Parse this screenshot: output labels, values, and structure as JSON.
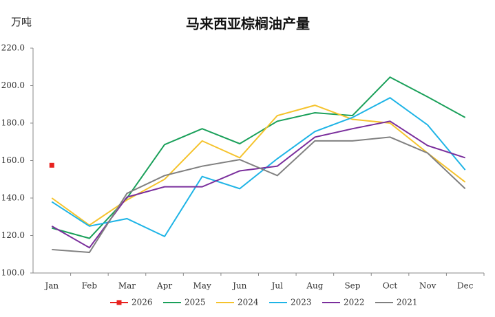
{
  "chart_data": {
    "type": "line",
    "title": "马来西亚棕榈油产量",
    "y_label": "万吨",
    "categories": [
      "Jan",
      "Feb",
      "Mar",
      "Apr",
      "May",
      "Jun",
      "Jul",
      "Aug",
      "Sep",
      "Oct",
      "Nov",
      "Dec"
    ],
    "ylim": [
      100,
      220
    ],
    "yticks": [
      {
        "value": 100,
        "label": "100.0"
      },
      {
        "value": 120,
        "label": "120.0"
      },
      {
        "value": 140,
        "label": "140.0"
      },
      {
        "value": 160,
        "label": "160.0"
      },
      {
        "value": 180,
        "label": "180.0"
      },
      {
        "value": 200,
        "label": "200.0"
      },
      {
        "value": 220,
        "label": "220.0"
      }
    ],
    "grid": false,
    "legend": "bottom",
    "series": [
      {
        "name": "2026",
        "color": "#e8221f",
        "marker": "square",
        "values": [
          157.5,
          null,
          null,
          null,
          null,
          null,
          null,
          null,
          null,
          null,
          null,
          null
        ]
      },
      {
        "name": "2025",
        "color": "#1aa05a",
        "values": [
          124,
          118.5,
          140,
          168.5,
          177,
          169,
          181,
          185.5,
          184,
          204.5,
          194,
          183
        ]
      },
      {
        "name": "2024",
        "color": "#f5c32c",
        "values": [
          140,
          125.5,
          139,
          150,
          170.5,
          161.5,
          184,
          189.5,
          182,
          180,
          164,
          148.5
        ]
      },
      {
        "name": "2023",
        "color": "#1eb4e6",
        "values": [
          138,
          125,
          129,
          119.5,
          151.5,
          145,
          161,
          175.5,
          183,
          193.5,
          179,
          155
        ]
      },
      {
        "name": "2022",
        "color": "#7a2e9c",
        "values": [
          125,
          113.5,
          140.5,
          146,
          146,
          154.5,
          157,
          172.5,
          177,
          181,
          168,
          161.5
        ]
      },
      {
        "name": "2021",
        "color": "#808080",
        "values": [
          112.5,
          111,
          142.5,
          152,
          157,
          160.5,
          152,
          170.5,
          170.5,
          172.5,
          164,
          145
        ]
      }
    ]
  }
}
